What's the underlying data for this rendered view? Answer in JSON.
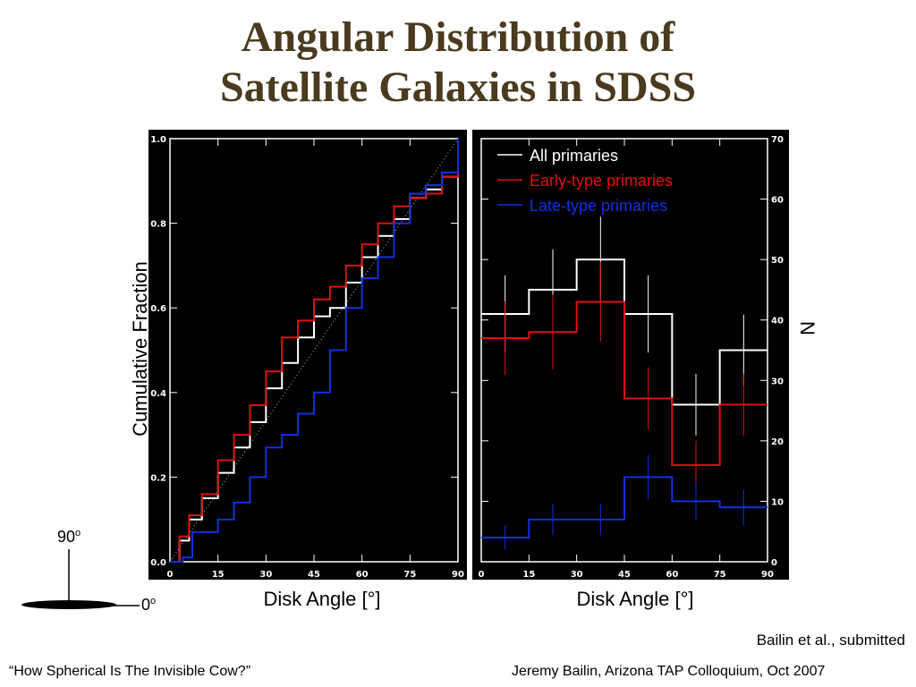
{
  "slide": {
    "title_line1": "Angular Distribution of",
    "title_line2": "Satellite Galaxies in SDSS",
    "disk_label_90": "90",
    "disk_label_90_sup": "o",
    "disk_label_0": "0",
    "disk_label_0_sup": "o",
    "credit": "Bailin et al., submitted",
    "footer_left": "“How Spherical Is The Invisible Cow?”",
    "footer_right": "Jeremy Bailin, Arizona TAP Colloquium, Oct 2007"
  },
  "colors": {
    "all": "#ffffff",
    "early": "#e01010",
    "late": "#1030e0",
    "panel_bg": "#000000",
    "title": "#4a3a1e"
  },
  "chart_data": [
    {
      "type": "line",
      "ylabel": "Cumulative Fraction",
      "xlabel": "Disk Angle [°]",
      "xlim": [
        0,
        90
      ],
      "ylim": [
        0,
        1.0
      ],
      "xticks": [
        "0",
        "15",
        "30",
        "45",
        "60",
        "75",
        "90"
      ],
      "yticks": [
        "0.0",
        "0.2",
        "0.4",
        "0.6",
        "0.8",
        "1.0"
      ],
      "reference_line": {
        "x": [
          0,
          90
        ],
        "y": [
          0,
          1.0
        ],
        "style": "dotted"
      },
      "series": [
        {
          "name": "All primaries",
          "color_key": "all",
          "x": [
            0,
            3,
            6,
            10,
            15,
            20,
            25,
            30,
            35,
            40,
            45,
            50,
            55,
            60,
            65,
            70,
            75,
            80,
            85,
            90
          ],
          "y": [
            0,
            0.05,
            0.1,
            0.15,
            0.21,
            0.27,
            0.33,
            0.41,
            0.47,
            0.53,
            0.58,
            0.6,
            0.66,
            0.72,
            0.77,
            0.81,
            0.86,
            0.88,
            0.91,
            1.0
          ]
        },
        {
          "name": "Early-type primaries",
          "color_key": "early",
          "x": [
            0,
            3,
            6,
            10,
            15,
            20,
            25,
            30,
            35,
            40,
            45,
            50,
            55,
            60,
            65,
            70,
            75,
            80,
            85,
            90
          ],
          "y": [
            0,
            0.06,
            0.11,
            0.16,
            0.24,
            0.3,
            0.37,
            0.45,
            0.53,
            0.57,
            0.62,
            0.65,
            0.7,
            0.75,
            0.8,
            0.84,
            0.86,
            0.87,
            0.91,
            1.0
          ]
        },
        {
          "name": "Late-type primaries",
          "color_key": "late",
          "x": [
            0,
            4,
            7,
            10,
            15,
            20,
            25,
            30,
            35,
            40,
            45,
            50,
            55,
            60,
            65,
            70,
            75,
            80,
            85,
            90
          ],
          "y": [
            0,
            0.01,
            0.07,
            0.07,
            0.1,
            0.14,
            0.2,
            0.27,
            0.3,
            0.35,
            0.4,
            0.5,
            0.6,
            0.67,
            0.72,
            0.8,
            0.87,
            0.89,
            0.92,
            1.0
          ]
        }
      ]
    },
    {
      "type": "histogram",
      "ylabel": "N",
      "xlabel": "Disk Angle [°]",
      "xlim": [
        0,
        90
      ],
      "ylim": [
        0,
        70
      ],
      "xticks": [
        "0",
        "15",
        "30",
        "45",
        "60",
        "75",
        "90"
      ],
      "yticks": [
        "0",
        "10",
        "20",
        "30",
        "40",
        "50",
        "60",
        "70"
      ],
      "bin_edges": [
        0,
        15,
        30,
        45,
        60,
        75,
        90
      ],
      "legend_position": "top-left",
      "series": [
        {
          "name": "All primaries",
          "color_key": "all",
          "values": [
            41,
            45,
            50,
            41,
            26,
            35
          ],
          "errors": [
            6.4,
            6.7,
            7.1,
            6.4,
            5.1,
            5.9
          ]
        },
        {
          "name": "Early-type primaries",
          "color_key": "early",
          "values": [
            37,
            38,
            43,
            27,
            16,
            26
          ],
          "errors": [
            6.1,
            6.2,
            6.6,
            5.2,
            4.0,
            5.1
          ]
        },
        {
          "name": "Late-type primaries",
          "color_key": "late",
          "values": [
            4,
            7,
            7,
            14,
            10,
            9
          ],
          "errors": [
            2.0,
            2.6,
            2.6,
            3.7,
            3.2,
            3.0
          ]
        }
      ]
    }
  ]
}
